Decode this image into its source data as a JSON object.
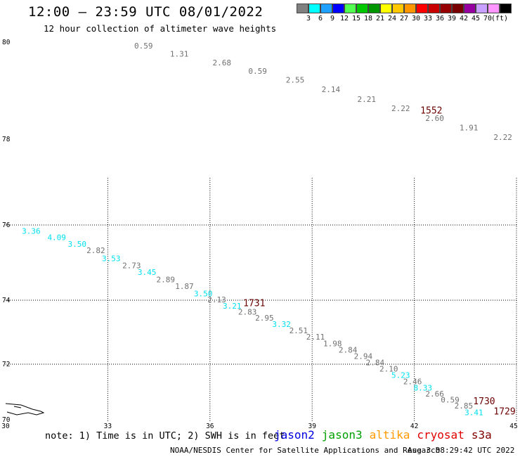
{
  "header": {
    "title": "12:00 – 23:59 UTC 08/01/2022",
    "subtitle": "12 hour collection of altimeter wave heights"
  },
  "legend": {
    "colors": [
      "#808080",
      "#00ffff",
      "#1ea0ff",
      "#0000ff",
      "#50ff50",
      "#00c800",
      "#009600",
      "#ffff00",
      "#ffc800",
      "#ff9600",
      "#ff0000",
      "#c80000",
      "#960000",
      "#780000",
      "#9600a0",
      "#c8a0ff",
      "#ff96ff",
      "#000000"
    ],
    "labels": [
      "3",
      "6",
      "9",
      "12",
      "15",
      "18",
      "21",
      "24",
      "27",
      "30",
      "33",
      "36",
      "39",
      "42",
      "45",
      "70",
      "(ft)"
    ]
  },
  "map": {
    "lon_min": 30,
    "lon_max": 45,
    "lat_min": 70,
    "lat_max": 80,
    "lon_ticks": [
      "30",
      "33",
      "36",
      "39",
      "42",
      "45"
    ],
    "lat_ticks": [
      "70",
      "72",
      "74",
      "76",
      "78",
      "80"
    ],
    "observations": [
      {
        "lon": 34.05,
        "lat": 79.87,
        "value": "0.59",
        "color": "#707070"
      },
      {
        "lon": 35.1,
        "lat": 79.7,
        "value": "1.31",
        "color": "#707070"
      },
      {
        "lon": 36.35,
        "lat": 79.52,
        "value": "2.68",
        "color": "#707070"
      },
      {
        "lon": 37.4,
        "lat": 79.35,
        "value": "0.59",
        "color": "#707070"
      },
      {
        "lon": 38.5,
        "lat": 79.17,
        "value": "2.55",
        "color": "#707070"
      },
      {
        "lon": 39.55,
        "lat": 78.97,
        "value": "2.14",
        "color": "#707070"
      },
      {
        "lon": 40.6,
        "lat": 78.77,
        "value": "2.21",
        "color": "#707070"
      },
      {
        "lon": 41.6,
        "lat": 78.58,
        "value": "2.22",
        "color": "#707070"
      },
      {
        "lon": 42.6,
        "lat": 78.38,
        "value": "2.60",
        "color": "#707070"
      },
      {
        "lon": 43.6,
        "lat": 78.18,
        "value": "1.91",
        "color": "#707070"
      },
      {
        "lon": 44.6,
        "lat": 77.98,
        "value": "2.22",
        "color": "#707070"
      },
      {
        "lon": 45.2,
        "lat": 77.78,
        "value": "0",
        "color": "#707070"
      },
      {
        "lon": 30.75,
        "lat": 75.77,
        "value": "3.36",
        "color": "#00e0f0"
      },
      {
        "lon": 31.5,
        "lat": 75.6,
        "value": "4.09",
        "color": "#00e0f0"
      },
      {
        "lon": 32.1,
        "lat": 75.42,
        "value": "3.50",
        "color": "#00e0f0"
      },
      {
        "lon": 32.65,
        "lat": 75.25,
        "value": "2.82",
        "color": "#707070"
      },
      {
        "lon": 33.1,
        "lat": 75.04,
        "value": "3.53",
        "color": "#00e0f0"
      },
      {
        "lon": 33.7,
        "lat": 74.85,
        "value": "2.73",
        "color": "#707070"
      },
      {
        "lon": 34.15,
        "lat": 74.67,
        "value": "3.45",
        "color": "#00e0f0"
      },
      {
        "lon": 34.7,
        "lat": 74.48,
        "value": "2.89",
        "color": "#707070"
      },
      {
        "lon": 35.25,
        "lat": 74.3,
        "value": "1.87",
        "color": "#707070"
      },
      {
        "lon": 35.8,
        "lat": 74.1,
        "value": "3.50",
        "color": "#00e0f0"
      },
      {
        "lon": 36.2,
        "lat": 73.93,
        "value": "2.13",
        "color": "#707070"
      },
      {
        "lon": 36.65,
        "lat": 73.74,
        "value": "3.21",
        "color": "#00e0f0"
      },
      {
        "lon": 37.1,
        "lat": 73.55,
        "value": "2.83",
        "color": "#707070"
      },
      {
        "lon": 37.6,
        "lat": 73.36,
        "value": "2.95",
        "color": "#707070"
      },
      {
        "lon": 38.1,
        "lat": 73.17,
        "value": "3.32",
        "color": "#00e0f0"
      },
      {
        "lon": 38.6,
        "lat": 72.97,
        "value": "2.51",
        "color": "#707070"
      },
      {
        "lon": 39.1,
        "lat": 72.77,
        "value": "2.11",
        "color": "#707070"
      },
      {
        "lon": 39.6,
        "lat": 72.56,
        "value": "1.98",
        "color": "#707070"
      },
      {
        "lon": 40.05,
        "lat": 72.36,
        "value": "2.84",
        "color": "#707070"
      },
      {
        "lon": 40.5,
        "lat": 72.16,
        "value": "2.94",
        "color": "#707070"
      },
      {
        "lon": 40.85,
        "lat": 71.96,
        "value": "2.84",
        "color": "#707070"
      },
      {
        "lon": 41.25,
        "lat": 71.75,
        "value": "2.10",
        "color": "#707070"
      },
      {
        "lon": 41.6,
        "lat": 71.53,
        "value": "5.23",
        "color": "#00e0f0"
      },
      {
        "lon": 41.95,
        "lat": 71.3,
        "value": "2.46",
        "color": "#707070"
      },
      {
        "lon": 42.25,
        "lat": 71.08,
        "value": "8.33",
        "color": "#00e0f0"
      },
      {
        "lon": 42.6,
        "lat": 70.88,
        "value": "2.66",
        "color": "#707070"
      },
      {
        "lon": 43.05,
        "lat": 70.67,
        "value": "0.59",
        "color": "#707070"
      },
      {
        "lon": 43.45,
        "lat": 70.46,
        "value": "2.85",
        "color": "#707070"
      },
      {
        "lon": 43.75,
        "lat": 70.23,
        "value": "3.41",
        "color": "#00e0f0"
      }
    ],
    "times": [
      {
        "lon": 42.5,
        "lat": 78.53,
        "text": "1552"
      },
      {
        "lon": 37.3,
        "lat": 73.81,
        "text": "1731"
      },
      {
        "lon": 44.05,
        "lat": 70.61,
        "text": "1730"
      },
      {
        "lon": 44.65,
        "lat": 70.26,
        "text": "1729"
      }
    ]
  },
  "footer": {
    "note": "note: 1) Time is in UTC; 2) SWH is in feet",
    "satellites": [
      {
        "name": "jason2",
        "color": "#0000e0"
      },
      {
        "name": "jason3",
        "color": "#00a000"
      },
      {
        "name": "altika",
        "color": "#ff9900"
      },
      {
        "name": "cryosat",
        "color": "#e00000"
      },
      {
        "name": "s3a",
        "color": "#800000"
      }
    ],
    "credit": "NOAA/NESDIS Center for Satellite Applications and Research",
    "timestamp": "Aug  3 08:29:42 UTC 2022"
  }
}
